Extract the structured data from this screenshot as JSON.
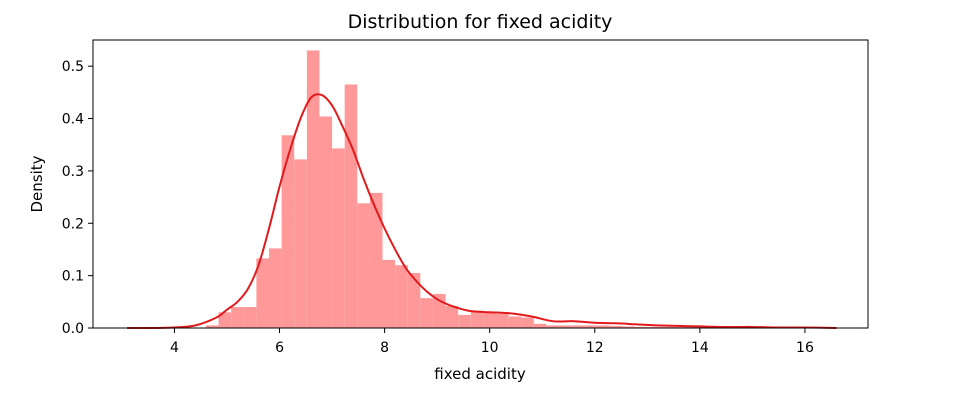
{
  "chart_data": {
    "type": "bar",
    "title": "Distribution for fixed acidity",
    "xlabel": "fixed acidity",
    "ylabel": "Density",
    "xlim": [
      2.45,
      17.2
    ],
    "ylim": [
      0,
      0.55
    ],
    "xticks": [
      4,
      6,
      8,
      10,
      12,
      14,
      16
    ],
    "yticks": [
      0.0,
      0.1,
      0.2,
      0.3,
      0.4,
      0.5
    ],
    "grid": false,
    "colors": {
      "bars": "#ff9999",
      "kde": "#e31a1c",
      "frame": "#000000"
    },
    "series": [
      {
        "type": "histogram",
        "bin_width": 0.24,
        "bin_starts": [
          4.6,
          4.84,
          5.08,
          5.32,
          5.56,
          5.8,
          6.04,
          6.28,
          6.52,
          6.76,
          7.0,
          7.24,
          7.48,
          7.72,
          7.96,
          8.2,
          8.44,
          8.68,
          8.92,
          9.16,
          9.4,
          9.64,
          9.88,
          10.12,
          10.36,
          10.6,
          10.84,
          11.08,
          11.32,
          11.56,
          11.8,
          12.04,
          12.28,
          12.52,
          12.76,
          13.0,
          13.24,
          13.48,
          13.72,
          13.96,
          14.2,
          14.44,
          14.68,
          14.92,
          15.16,
          15.4,
          15.64,
          15.88,
          16.12,
          16.36
        ],
        "values": [
          0.005,
          0.03,
          0.04,
          0.04,
          0.133,
          0.152,
          0.368,
          0.322,
          0.53,
          0.404,
          0.343,
          0.465,
          0.238,
          0.258,
          0.13,
          0.12,
          0.105,
          0.057,
          0.065,
          0.042,
          0.025,
          0.033,
          0.03,
          0.027,
          0.022,
          0.02,
          0.008,
          0.005,
          0.005,
          0.005,
          0.005,
          0.005,
          0.004,
          0.003,
          0.002,
          0.002,
          0.002,
          0.002,
          0.002,
          0.002,
          0.002,
          0.001,
          0.001,
          0.001,
          0.001,
          0.001,
          0.001,
          0.001,
          0.001,
          0.001
        ]
      },
      {
        "type": "line",
        "x": [
          3.1,
          3.6,
          4.0,
          4.4,
          4.8,
          5.0,
          5.2,
          5.4,
          5.6,
          5.8,
          6.0,
          6.2,
          6.4,
          6.6,
          6.8,
          7.0,
          7.2,
          7.4,
          7.6,
          7.8,
          8.0,
          8.2,
          8.4,
          8.6,
          8.8,
          9.0,
          9.2,
          9.4,
          9.6,
          9.8,
          10.0,
          10.4,
          10.8,
          11.2,
          11.6,
          12.0,
          12.4,
          12.8,
          13.2,
          13.6,
          14.0,
          14.5,
          15.0,
          15.5,
          16.0,
          16.6
        ],
        "y": [
          0.0,
          0.0,
          0.001,
          0.005,
          0.02,
          0.035,
          0.05,
          0.075,
          0.12,
          0.19,
          0.27,
          0.34,
          0.4,
          0.44,
          0.445,
          0.425,
          0.385,
          0.34,
          0.285,
          0.235,
          0.19,
          0.15,
          0.115,
          0.09,
          0.07,
          0.055,
          0.045,
          0.038,
          0.033,
          0.031,
          0.03,
          0.028,
          0.022,
          0.013,
          0.013,
          0.01,
          0.009,
          0.007,
          0.005,
          0.004,
          0.003,
          0.002,
          0.002,
          0.001,
          0.001,
          0.0
        ]
      }
    ]
  }
}
